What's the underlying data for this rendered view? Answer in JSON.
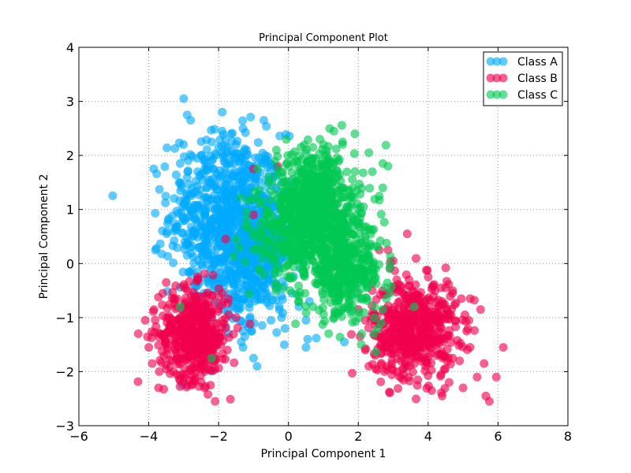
{
  "chart_data": {
    "type": "scatter",
    "title": "Principal Component Plot",
    "xlabel": "Principal Component 1",
    "ylabel": "Principal Component 2",
    "xlim": [
      -6,
      8
    ],
    "ylim": [
      -3,
      4
    ],
    "x_ticks": [
      -6,
      -4,
      -2,
      0,
      2,
      4,
      6,
      8
    ],
    "y_ticks": [
      -3,
      -2,
      -1,
      0,
      1,
      2,
      3,
      4
    ],
    "x_tick_labels": [
      "−6",
      "−4",
      "−2",
      "0",
      "2",
      "4",
      "6",
      "8"
    ],
    "y_tick_labels": [
      "−3",
      "−2",
      "−1",
      "0",
      "1",
      "2",
      "3",
      "4"
    ],
    "grid": true,
    "legend_position": "top-right",
    "series": [
      {
        "name": "Class A",
        "color": "#00aaff",
        "points": [
          [
            -3.0,
            3.05
          ],
          [
            -2.9,
            2.75
          ],
          [
            -2.8,
            2.65
          ],
          [
            -1.9,
            2.45
          ],
          [
            -1.3,
            2.5
          ],
          [
            -1.8,
            2.3
          ],
          [
            -2.2,
            2.25
          ],
          [
            -1.5,
            2.2
          ],
          [
            -2.5,
            2.0
          ],
          [
            -1.9,
            2.05
          ],
          [
            -2.0,
            2.15
          ],
          [
            -1.5,
            1.95
          ],
          [
            -1.2,
            2.1
          ],
          [
            -3.1,
            1.85
          ],
          [
            -2.2,
            1.9
          ],
          [
            -3.1,
            1.5
          ],
          [
            -2.9,
            1.3
          ],
          [
            -2.8,
            1.0
          ],
          [
            -3.2,
            0.97
          ],
          [
            -2.7,
            0.85
          ],
          [
            -2.85,
            0.55
          ],
          [
            -2.8,
            0.3
          ],
          [
            -2.9,
            0.15
          ],
          [
            -2.6,
            -0.15
          ],
          [
            -2.7,
            -0.4
          ],
          [
            -2.6,
            -0.6
          ],
          [
            -2.1,
            -0.7
          ],
          [
            -1.6,
            -0.8
          ],
          [
            -1.4,
            -1.05
          ],
          [
            -1.3,
            -1.25
          ],
          [
            -1.35,
            -1.45
          ],
          [
            -1.3,
            -1.55
          ],
          [
            -1.0,
            -1.75
          ],
          [
            -0.9,
            -1.9
          ],
          [
            -1.05,
            -1.25
          ],
          [
            -1.25,
            -1.35
          ],
          [
            -0.5,
            -1.05
          ],
          [
            -0.2,
            -1.0
          ],
          [
            -0.1,
            -1.2
          ],
          [
            0.5,
            -1.05
          ],
          [
            0.55,
            -1.4
          ],
          [
            0.8,
            -1.38
          ],
          [
            0.5,
            -1.55
          ],
          [
            1.6,
            -1.45
          ],
          [
            0.3,
            -0.8
          ],
          [
            0.6,
            -0.7
          ],
          [
            -0.2,
            -0.6
          ],
          [
            -0.3,
            -0.45
          ],
          [
            0.1,
            -0.55
          ],
          [
            -0.5,
            0.5
          ],
          [
            -0.3,
            0.9
          ],
          [
            -0.6,
            1.2
          ],
          [
            -0.2,
            1.5
          ],
          [
            -0.7,
            1.85
          ],
          [
            -1.0,
            1.65
          ],
          [
            -1.1,
            1.4
          ],
          [
            -0.8,
            0.2
          ],
          [
            -0.5,
            -0.2
          ],
          [
            -2.3,
            1.55
          ],
          [
            -2.6,
            1.7
          ]
        ],
        "clusters": [
          {
            "center": [
              -1.8,
              0.9
            ],
            "spread": [
              0.8,
              0.75
            ],
            "count": 650
          },
          {
            "center": [
              -0.8,
              0.3
            ],
            "spread": [
              0.5,
              0.6
            ],
            "count": 250
          },
          {
            "center": [
              -1.4,
              -0.3
            ],
            "spread": [
              0.45,
              0.45
            ],
            "count": 120
          }
        ]
      },
      {
        "name": "Class B",
        "color": "#f0004e",
        "points": [
          [
            -4.3,
            -1.3
          ],
          [
            -4.0,
            -1.55
          ],
          [
            -3.9,
            -1.85
          ],
          [
            -3.7,
            -2.0
          ],
          [
            -3.5,
            -1.95
          ],
          [
            -4.1,
            -1.05
          ],
          [
            -3.85,
            -0.85
          ],
          [
            -3.6,
            -0.55
          ],
          [
            -3.5,
            -0.35
          ],
          [
            -2.6,
            -0.3
          ],
          [
            -2.2,
            -0.6
          ],
          [
            -1.9,
            -0.55
          ],
          [
            -1.5,
            -1.0
          ],
          [
            -1.75,
            -1.6
          ],
          [
            -2.1,
            -1.95
          ],
          [
            -2.4,
            -2.3
          ],
          [
            -2.1,
            -2.55
          ],
          [
            -2.9,
            -2.25
          ],
          [
            -3.2,
            -2.05
          ],
          [
            -2.4,
            -2.0
          ],
          [
            -1.8,
            0.45
          ],
          [
            -1.0,
            0.9
          ],
          [
            -1.0,
            1.75
          ],
          [
            -0.3,
            1.8
          ],
          [
            2.6,
            0.25
          ],
          [
            2.85,
            0.25
          ],
          [
            3.4,
            0.55
          ],
          [
            3.0,
            0.05
          ],
          [
            3.45,
            -0.3
          ],
          [
            4.0,
            -0.25
          ],
          [
            4.5,
            -0.45
          ],
          [
            4.7,
            -0.5
          ],
          [
            4.95,
            -0.65
          ],
          [
            5.2,
            -0.65
          ],
          [
            5.05,
            -0.95
          ],
          [
            5.5,
            -0.85
          ],
          [
            5.1,
            -1.25
          ],
          [
            5.2,
            -1.55
          ],
          [
            5.6,
            -1.85
          ],
          [
            5.4,
            -2.1
          ],
          [
            5.65,
            -2.45
          ],
          [
            5.95,
            -2.1
          ],
          [
            5.75,
            -2.55
          ],
          [
            6.15,
            -1.55
          ],
          [
            5.0,
            -2.3
          ],
          [
            4.6,
            -2.2
          ],
          [
            4.4,
            -2.45
          ],
          [
            4.1,
            -2.35
          ],
          [
            3.7,
            -2.15
          ],
          [
            3.3,
            -2.05
          ],
          [
            2.75,
            -2.0
          ],
          [
            2.5,
            -1.95
          ],
          [
            2.3,
            -1.9
          ],
          [
            2.2,
            -1.6
          ],
          [
            2.05,
            -1.35
          ],
          [
            2.2,
            -1.05
          ],
          [
            2.0,
            -0.85
          ],
          [
            2.4,
            -0.5
          ],
          [
            3.1,
            -0.3
          ],
          [
            4.9,
            -1.8
          ]
        ],
        "clusters": [
          {
            "center": [
              -2.7,
              -1.3
            ],
            "spread": [
              0.5,
              0.42
            ],
            "count": 480
          },
          {
            "center": [
              3.6,
              -1.2
            ],
            "spread": [
              0.6,
              0.45
            ],
            "count": 520
          }
        ]
      },
      {
        "name": "Class C",
        "color": "#00c853",
        "points": [
          [
            1.3,
            2.45
          ],
          [
            1.9,
            2.4
          ],
          [
            0.9,
            2.3
          ],
          [
            1.55,
            2.25
          ],
          [
            2.3,
            2.05
          ],
          [
            2.7,
            1.85
          ],
          [
            2.85,
            1.8
          ],
          [
            2.4,
            1.7
          ],
          [
            2.7,
            1.4
          ],
          [
            2.6,
            1.25
          ],
          [
            2.15,
            1.05
          ],
          [
            1.85,
            0.8
          ],
          [
            2.2,
            0.5
          ],
          [
            1.95,
            0.45
          ],
          [
            2.25,
            0.15
          ],
          [
            2.5,
            -0.1
          ],
          [
            2.9,
            -0.55
          ],
          [
            2.8,
            -0.65
          ],
          [
            2.7,
            -0.85
          ],
          [
            2.65,
            -1.1
          ],
          [
            2.55,
            -1.2
          ],
          [
            3.6,
            -0.8
          ],
          [
            2.45,
            -1.3
          ],
          [
            2.1,
            -1.3
          ],
          [
            1.35,
            -0.9
          ],
          [
            1.3,
            -1.0
          ],
          [
            0.7,
            -0.8
          ],
          [
            0.3,
            -0.6
          ],
          [
            0.05,
            -0.5
          ],
          [
            -0.4,
            -0.2
          ],
          [
            -0.85,
            -0.1
          ],
          [
            -0.75,
            0.1
          ],
          [
            -0.9,
            0.3
          ],
          [
            -0.8,
            0.75
          ],
          [
            -1.2,
            0.95
          ],
          [
            -0.8,
            1.1
          ],
          [
            -0.5,
            1.35
          ],
          [
            -0.3,
            1.75
          ],
          [
            0.2,
            1.9
          ],
          [
            0.5,
            2.05
          ],
          [
            0.7,
            2.15
          ],
          [
            1.0,
            2.2
          ],
          [
            -1.0,
            0.6
          ],
          [
            -1.2,
            0.8
          ],
          [
            -1.5,
            0.45
          ],
          [
            -1.4,
            0.3
          ],
          [
            -3.1,
            -0.8
          ],
          [
            -2.2,
            -1.75
          ],
          [
            1.8,
            1.25
          ],
          [
            2.9,
            -0.1
          ]
        ],
        "clusters": [
          {
            "center": [
              0.8,
              1.1
            ],
            "spread": [
              0.55,
              0.5
            ],
            "count": 600
          },
          {
            "center": [
              1.6,
              -0.1
            ],
            "spread": [
              0.55,
              0.45
            ],
            "count": 420
          },
          {
            "center": [
              0.1,
              0.6
            ],
            "spread": [
              0.5,
              0.5
            ],
            "count": 250
          }
        ]
      }
    ]
  }
}
